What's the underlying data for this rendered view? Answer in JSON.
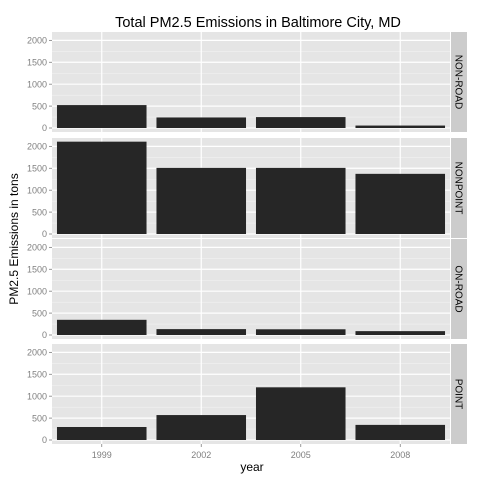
{
  "chart_data": {
    "type": "bar",
    "title": "Total PM2.5 Emissions in Baltimore City, MD",
    "xlabel": "year",
    "ylabel": "PM2.5 Emissions in tons",
    "categories": [
      "1999",
      "2002",
      "2005",
      "2008"
    ],
    "ylim": [
      0,
      2100
    ],
    "yticks": [
      0,
      500,
      1000,
      1500,
      2000
    ],
    "ytick_labels": [
      "0",
      "500",
      "1000",
      "1500",
      "2000"
    ],
    "grid": true,
    "facets": [
      {
        "label": "NON-ROAD",
        "values": [
          522.94,
          240.85,
          248.93,
          55.82
        ]
      },
      {
        "label": "NONPOINT",
        "values": [
          2107.63,
          1509.5,
          1509.5,
          1373.21
        ]
      },
      {
        "label": "ON-ROAD",
        "values": [
          346.82,
          134.31,
          130.43,
          88.28
        ]
      },
      {
        "label": "POINT",
        "values": [
          296.8,
          569.26,
          1202.49,
          344.98
        ]
      }
    ],
    "colors": {
      "bar": "#262626",
      "panel_bg": "#e5e5e5",
      "strip_bg": "#cccccc",
      "grid_major": "#ffffff",
      "grid_minor": "#f2f2f2",
      "tick_text": "#7f7f7f",
      "text": "#000000"
    }
  }
}
